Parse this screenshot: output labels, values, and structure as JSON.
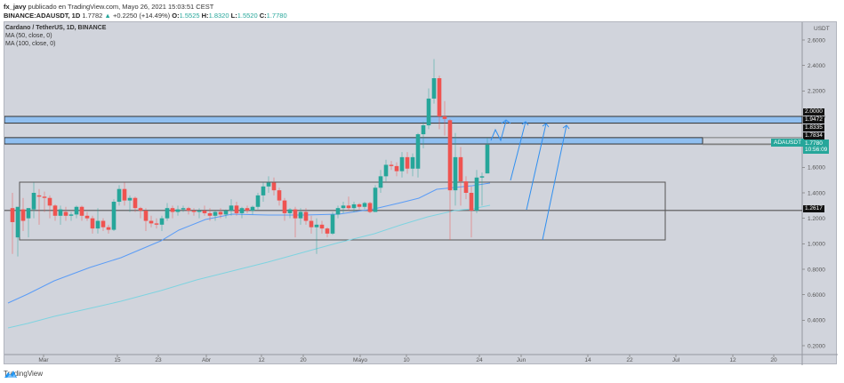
{
  "header": {
    "author": "fx_javy",
    "published_text": "publicado en TradingView.com, Mayo 26, 2021 15:03:51 CEST",
    "symbol_line": "BINANCE:ADAUSDT, 1D",
    "last_price": "1.7782",
    "change": "+0.2250 (+14.49%)",
    "o_label": "O:",
    "o_value": "1.5525",
    "h_label": "H:",
    "h_value": "1.8320",
    "l_label": "L:",
    "l_value": "1.5520",
    "c_label": "C:",
    "c_value": "1.7780",
    "up_arrow": "▲"
  },
  "legend": {
    "title": "Cardano / TetherUS, 1D, BINANCE",
    "ma1": "MA (50, close, 0)",
    "ma2": "MA (100, close, 0)"
  },
  "price_tags": {
    "t1": "2.0000",
    "t2": "1.9472",
    "t3": "1.8335",
    "t4": "1.7834",
    "support": "1.2617",
    "symbol": "ADAUSDT",
    "current": "1.7780",
    "countdown": "10:56:09"
  },
  "footer": {
    "brand": "TradingView"
  },
  "colors": {
    "background": "#d1d4dc",
    "up": "#26a69a",
    "down": "#ef5350",
    "ma50": "#5b9cf6",
    "ma100": "#7fd3e0",
    "zone_fill": "#90bff0",
    "arrow": "#2f8ff0"
  },
  "chart_data": {
    "type": "candlestick",
    "title": "Cardano / TetherUS, 1D, BINANCE",
    "symbol": "ADAUSDT",
    "ylabel": "USDT",
    "ylim": [
      0.1,
      2.7
    ],
    "y_ticks": [
      "2.6000",
      "2.4000",
      "2.2000",
      "2.0000",
      "1.8000",
      "1.6000",
      "1.4000",
      "1.2000",
      "1.0000",
      "0.8000",
      "0.6000",
      "0.4000",
      "0.2000"
    ],
    "x_ticks": [
      "Mar",
      "15",
      "23",
      "Abr",
      "12",
      "20",
      "Mayo",
      "10",
      "24",
      "Jun",
      "14",
      "22",
      "Jul",
      "12",
      "20"
    ],
    "indicators": [
      {
        "name": "MA (50, close, 0)",
        "color": "#5b9cf6"
      },
      {
        "name": "MA (100, close, 0)",
        "color": "#7fd3e0"
      }
    ],
    "horizontal_zones": [
      {
        "from": 1.9472,
        "to": 2.0,
        "fill": "#90bff0"
      },
      {
        "from": 1.7834,
        "to": 1.8335,
        "fill": "#90bff0"
      }
    ],
    "horizontal_lines": [
      1.2617
    ],
    "range_box": {
      "top": 1.49,
      "bottom": 1.03,
      "x_start": "late Feb",
      "x_end": "early Jul"
    },
    "annotations": [
      "upward projection arrows toward 1.95–2.00 resistance zone"
    ],
    "last": {
      "open": 1.5525,
      "high": 1.832,
      "low": 1.552,
      "close": 1.778,
      "change": 0.225,
      "change_pct": 14.49
    },
    "candles": [
      {
        "x": 13,
        "o": 1.28,
        "h": 1.4,
        "l": 0.92,
        "c": 1.17
      },
      {
        "x": 19,
        "o": 1.05,
        "h": 1.28,
        "l": 0.9,
        "c": 1.29
      },
      {
        "x": 25,
        "o": 1.27,
        "h": 1.36,
        "l": 1.1,
        "c": 1.18
      },
      {
        "x": 31,
        "o": 1.2,
        "h": 1.28,
        "l": 1.05,
        "c": 1.28
      },
      {
        "x": 37,
        "o": 1.27,
        "h": 1.48,
        "l": 1.2,
        "c": 1.4
      },
      {
        "x": 43,
        "o": 1.38,
        "h": 1.43,
        "l": 1.15,
        "c": 1.37
      },
      {
        "x": 49,
        "o": 1.37,
        "h": 1.41,
        "l": 1.25,
        "c": 1.36
      },
      {
        "x": 55,
        "o": 1.36,
        "h": 1.38,
        "l": 1.2,
        "c": 1.3
      },
      {
        "x": 61,
        "o": 1.3,
        "h": 1.31,
        "l": 1.18,
        "c": 1.22
      },
      {
        "x": 67,
        "o": 1.22,
        "h": 1.3,
        "l": 1.15,
        "c": 1.27
      },
      {
        "x": 73,
        "o": 1.25,
        "h": 1.29,
        "l": 1.18,
        "c": 1.22
      },
      {
        "x": 79,
        "o": 1.22,
        "h": 1.25,
        "l": 1.18,
        "c": 1.23
      },
      {
        "x": 85,
        "o": 1.23,
        "h": 1.3,
        "l": 1.2,
        "c": 1.29
      },
      {
        "x": 91,
        "o": 1.29,
        "h": 1.3,
        "l": 1.18,
        "c": 1.22
      },
      {
        "x": 97,
        "o": 1.22,
        "h": 1.25,
        "l": 1.18,
        "c": 1.2
      },
      {
        "x": 103,
        "o": 1.2,
        "h": 1.22,
        "l": 1.08,
        "c": 1.12
      },
      {
        "x": 109,
        "o": 1.12,
        "h": 1.28,
        "l": 1.08,
        "c": 1.18
      },
      {
        "x": 115,
        "o": 1.18,
        "h": 1.2,
        "l": 1.1,
        "c": 1.13
      },
      {
        "x": 121,
        "o": 1.13,
        "h": 1.15,
        "l": 1.08,
        "c": 1.11
      },
      {
        "x": 127,
        "o": 1.11,
        "h": 1.35,
        "l": 1.1,
        "c": 1.33
      },
      {
        "x": 133,
        "o": 1.33,
        "h": 1.46,
        "l": 1.3,
        "c": 1.43
      },
      {
        "x": 139,
        "o": 1.43,
        "h": 1.48,
        "l": 1.3,
        "c": 1.34
      },
      {
        "x": 145,
        "o": 1.34,
        "h": 1.38,
        "l": 1.25,
        "c": 1.36
      },
      {
        "x": 151,
        "o": 1.36,
        "h": 1.37,
        "l": 1.25,
        "c": 1.28
      },
      {
        "x": 157,
        "o": 1.28,
        "h": 1.29,
        "l": 1.2,
        "c": 1.26
      },
      {
        "x": 163,
        "o": 1.26,
        "h": 1.28,
        "l": 1.1,
        "c": 1.18
      },
      {
        "x": 169,
        "o": 1.18,
        "h": 1.22,
        "l": 1.13,
        "c": 1.16
      },
      {
        "x": 175,
        "o": 1.16,
        "h": 1.2,
        "l": 1.12,
        "c": 1.15
      },
      {
        "x": 181,
        "o": 1.15,
        "h": 1.22,
        "l": 1.1,
        "c": 1.2
      },
      {
        "x": 187,
        "o": 1.2,
        "h": 1.32,
        "l": 1.18,
        "c": 1.28
      },
      {
        "x": 193,
        "o": 1.28,
        "h": 1.3,
        "l": 1.2,
        "c": 1.25
      },
      {
        "x": 199,
        "o": 1.25,
        "h": 1.3,
        "l": 1.22,
        "c": 1.27
      },
      {
        "x": 205,
        "o": 1.27,
        "h": 1.3,
        "l": 1.25,
        "c": 1.28
      },
      {
        "x": 211,
        "o": 1.28,
        "h": 1.29,
        "l": 1.23,
        "c": 1.26
      },
      {
        "x": 217,
        "o": 1.26,
        "h": 1.28,
        "l": 1.22,
        "c": 1.25
      },
      {
        "x": 223,
        "o": 1.25,
        "h": 1.28,
        "l": 1.2,
        "c": 1.26
      },
      {
        "x": 229,
        "o": 1.26,
        "h": 1.3,
        "l": 1.22,
        "c": 1.24
      },
      {
        "x": 235,
        "o": 1.24,
        "h": 1.28,
        "l": 1.18,
        "c": 1.22
      },
      {
        "x": 241,
        "o": 1.22,
        "h": 1.26,
        "l": 1.18,
        "c": 1.25
      },
      {
        "x": 247,
        "o": 1.25,
        "h": 1.28,
        "l": 1.2,
        "c": 1.23
      },
      {
        "x": 253,
        "o": 1.23,
        "h": 1.27,
        "l": 1.2,
        "c": 1.26
      },
      {
        "x": 259,
        "o": 1.26,
        "h": 1.35,
        "l": 1.22,
        "c": 1.3
      },
      {
        "x": 265,
        "o": 1.3,
        "h": 1.33,
        "l": 1.22,
        "c": 1.24
      },
      {
        "x": 271,
        "o": 1.24,
        "h": 1.29,
        "l": 1.2,
        "c": 1.28
      },
      {
        "x": 277,
        "o": 1.28,
        "h": 1.3,
        "l": 1.24,
        "c": 1.26
      },
      {
        "x": 283,
        "o": 1.26,
        "h": 1.3,
        "l": 1.23,
        "c": 1.29
      },
      {
        "x": 289,
        "o": 1.29,
        "h": 1.4,
        "l": 1.27,
        "c": 1.38
      },
      {
        "x": 295,
        "o": 1.38,
        "h": 1.48,
        "l": 1.33,
        "c": 1.45
      },
      {
        "x": 301,
        "o": 1.45,
        "h": 1.53,
        "l": 1.4,
        "c": 1.48
      },
      {
        "x": 307,
        "o": 1.48,
        "h": 1.52,
        "l": 1.38,
        "c": 1.42
      },
      {
        "x": 313,
        "o": 1.42,
        "h": 1.44,
        "l": 1.3,
        "c": 1.34
      },
      {
        "x": 319,
        "o": 1.34,
        "h": 1.36,
        "l": 1.18,
        "c": 1.24
      },
      {
        "x": 325,
        "o": 1.24,
        "h": 1.28,
        "l": 1.2,
        "c": 1.27
      },
      {
        "x": 331,
        "o": 1.27,
        "h": 1.29,
        "l": 1.05,
        "c": 1.2
      },
      {
        "x": 337,
        "o": 1.2,
        "h": 1.28,
        "l": 1.15,
        "c": 1.25
      },
      {
        "x": 343,
        "o": 1.25,
        "h": 1.28,
        "l": 1.15,
        "c": 1.18
      },
      {
        "x": 349,
        "o": 1.18,
        "h": 1.22,
        "l": 1.08,
        "c": 1.13
      },
      {
        "x": 355,
        "o": 1.13,
        "h": 1.2,
        "l": 0.92,
        "c": 1.15
      },
      {
        "x": 361,
        "o": 1.15,
        "h": 1.18,
        "l": 1.08,
        "c": 1.12
      },
      {
        "x": 367,
        "o": 1.12,
        "h": 1.13,
        "l": 1.05,
        "c": 1.08
      },
      {
        "x": 373,
        "o": 1.08,
        "h": 1.25,
        "l": 1.07,
        "c": 1.23
      },
      {
        "x": 379,
        "o": 1.23,
        "h": 1.3,
        "l": 1.2,
        "c": 1.28
      },
      {
        "x": 385,
        "o": 1.28,
        "h": 1.33,
        "l": 1.24,
        "c": 1.3
      },
      {
        "x": 391,
        "o": 1.3,
        "h": 1.37,
        "l": 1.26,
        "c": 1.28
      },
      {
        "x": 397,
        "o": 1.28,
        "h": 1.33,
        "l": 1.25,
        "c": 1.31
      },
      {
        "x": 403,
        "o": 1.31,
        "h": 1.32,
        "l": 1.27,
        "c": 1.29
      },
      {
        "x": 409,
        "o": 1.29,
        "h": 1.33,
        "l": 1.27,
        "c": 1.32
      },
      {
        "x": 415,
        "o": 1.32,
        "h": 1.33,
        "l": 1.24,
        "c": 1.25
      },
      {
        "x": 421,
        "o": 1.25,
        "h": 1.46,
        "l": 1.25,
        "c": 1.44
      },
      {
        "x": 427,
        "o": 1.44,
        "h": 1.58,
        "l": 1.4,
        "c": 1.53
      },
      {
        "x": 433,
        "o": 1.53,
        "h": 1.66,
        "l": 1.49,
        "c": 1.62
      },
      {
        "x": 439,
        "o": 1.62,
        "h": 1.65,
        "l": 1.58,
        "c": 1.61
      },
      {
        "x": 445,
        "o": 1.61,
        "h": 1.64,
        "l": 1.53,
        "c": 1.57
      },
      {
        "x": 451,
        "o": 1.57,
        "h": 1.72,
        "l": 1.52,
        "c": 1.68
      },
      {
        "x": 457,
        "o": 1.68,
        "h": 1.72,
        "l": 1.55,
        "c": 1.59
      },
      {
        "x": 463,
        "o": 1.59,
        "h": 1.71,
        "l": 1.53,
        "c": 1.68
      },
      {
        "x": 469,
        "o": 1.59,
        "h": 1.87,
        "l": 1.52,
        "c": 1.86
      },
      {
        "x": 475,
        "o": 1.86,
        "h": 1.96,
        "l": 1.75,
        "c": 1.93
      },
      {
        "x": 481,
        "o": 1.93,
        "h": 2.22,
        "l": 1.9,
        "c": 2.14
      },
      {
        "x": 487,
        "o": 2.14,
        "h": 2.45,
        "l": 2.1,
        "c": 2.3
      },
      {
        "x": 493,
        "o": 2.3,
        "h": 2.32,
        "l": 1.9,
        "c": 2.0
      },
      {
        "x": 499,
        "o": 2.0,
        "h": 2.12,
        "l": 1.85,
        "c": 1.98
      },
      {
        "x": 505,
        "o": 1.97,
        "h": 1.98,
        "l": 1.03,
        "c": 1.42
      },
      {
        "x": 511,
        "o": 1.42,
        "h": 1.87,
        "l": 1.3,
        "c": 1.68
      },
      {
        "x": 517,
        "o": 1.68,
        "h": 1.76,
        "l": 1.3,
        "c": 1.49
      },
      {
        "x": 523,
        "o": 1.49,
        "h": 1.53,
        "l": 1.35,
        "c": 1.4
      },
      {
        "x": 529,
        "o": 1.4,
        "h": 1.45,
        "l": 1.05,
        "c": 1.26
      },
      {
        "x": 535,
        "o": 1.26,
        "h": 1.58,
        "l": 1.24,
        "c": 1.52
      },
      {
        "x": 541,
        "o": 1.52,
        "h": 1.56,
        "l": 1.3,
        "c": 1.53
      },
      {
        "x": 547,
        "o": 1.5525,
        "h": 1.832,
        "l": 1.552,
        "c": 1.778
      }
    ]
  }
}
